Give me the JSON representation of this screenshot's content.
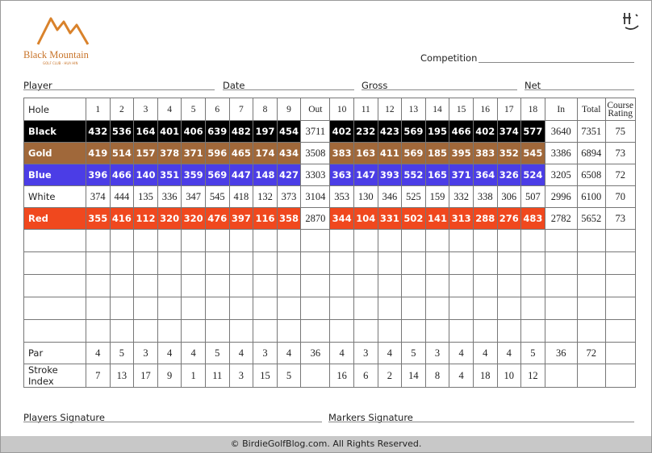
{
  "logo": {
    "title": "Black Mountain",
    "subtitle": "GOLF CLUB · HUA HIN"
  },
  "fields": {
    "competition": "Competition",
    "player": "Player",
    "date": "Date",
    "gross": "Gross",
    "net": "Net",
    "players_signature": "Players Signature",
    "markers_signature": "Markers Signature"
  },
  "table": {
    "header": {
      "label": "Hole",
      "front": [
        1,
        2,
        3,
        4,
        5,
        6,
        7,
        8,
        9
      ],
      "out": "Out",
      "back": [
        10,
        11,
        12,
        13,
        14,
        15,
        16,
        17,
        18
      ],
      "in": "In",
      "total": "Total",
      "rating": "Course Rating"
    },
    "tees": [
      {
        "label": "Black",
        "color": "#000000",
        "text_color": "#ffffff",
        "front": [
          432,
          536,
          164,
          401,
          406,
          639,
          482,
          197,
          454
        ],
        "out": 3711,
        "back": [
          402,
          232,
          423,
          569,
          195,
          466,
          402,
          374,
          577
        ],
        "in": 3640,
        "total": 7351,
        "rating": 75
      },
      {
        "label": "Gold",
        "color": "#a0683a",
        "text_color": "#ffffff",
        "front": [
          419,
          514,
          157,
          378,
          371,
          596,
          465,
          174,
          434
        ],
        "out": 3508,
        "back": [
          383,
          163,
          411,
          569,
          185,
          395,
          383,
          352,
          545
        ],
        "in": 3386,
        "total": 6894,
        "rating": 73
      },
      {
        "label": "Blue",
        "color": "#4b3de6",
        "text_color": "#ffffff",
        "front": [
          396,
          466,
          140,
          351,
          359,
          569,
          447,
          148,
          427
        ],
        "out": 3303,
        "back": [
          363,
          147,
          393,
          552,
          165,
          371,
          364,
          326,
          524
        ],
        "in": 3205,
        "total": 6508,
        "rating": 72
      },
      {
        "label": "White",
        "color": "#ffffff",
        "text_color": "#222222",
        "front": [
          374,
          444,
          135,
          336,
          347,
          545,
          418,
          132,
          373
        ],
        "out": 3104,
        "back": [
          353,
          130,
          346,
          525,
          159,
          332,
          338,
          306,
          507
        ],
        "in": 2996,
        "total": 6100,
        "rating": 70
      },
      {
        "label": "Red",
        "color": "#f0481e",
        "text_color": "#ffffff",
        "front": [
          355,
          416,
          112,
          320,
          320,
          476,
          397,
          116,
          358
        ],
        "out": 2870,
        "back": [
          344,
          104,
          331,
          502,
          141,
          313,
          288,
          276,
          483
        ],
        "in": 2782,
        "total": 5652,
        "rating": 73
      }
    ],
    "par": {
      "label": "Par",
      "front": [
        4,
        5,
        3,
        4,
        4,
        5,
        4,
        3,
        4
      ],
      "out": 36,
      "back": [
        4,
        3,
        4,
        5,
        3,
        4,
        4,
        4,
        5
      ],
      "in": 36,
      "total": 72
    },
    "stroke_index": {
      "label": "Stroke Index",
      "front": [
        7,
        13,
        17,
        9,
        1,
        11,
        3,
        15,
        5
      ],
      "back": [
        16,
        6,
        2,
        14,
        8,
        4,
        18,
        10,
        12
      ]
    }
  },
  "footer": "© BirdieGolfBlog.com.  All Rights Reserved."
}
